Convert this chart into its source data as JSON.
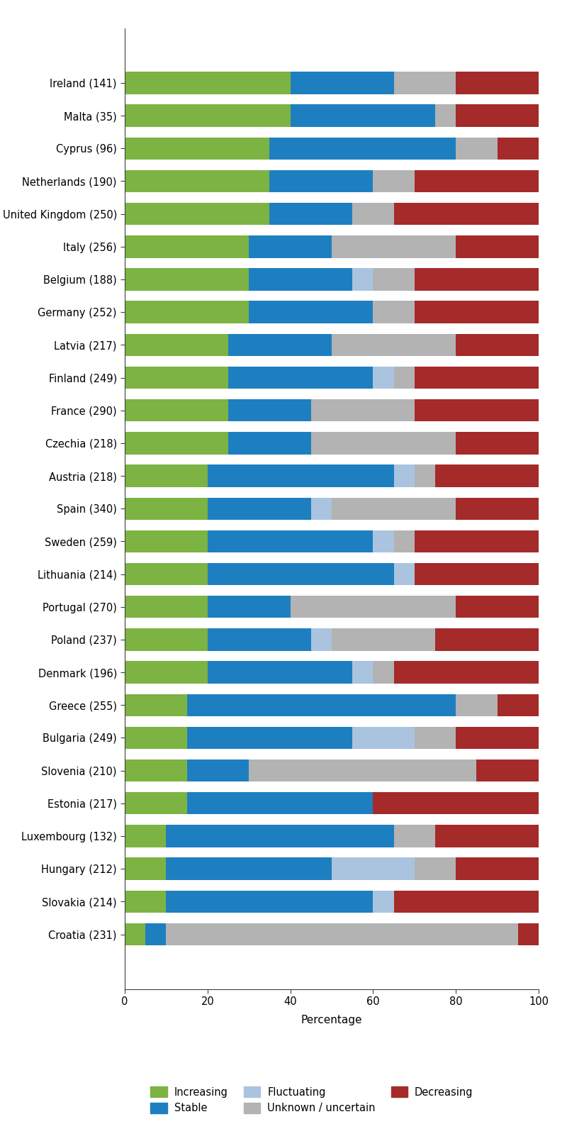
{
  "countries": [
    "Ireland (141)",
    "Malta (35)",
    "Cyprus (96)",
    "Netherlands (190)",
    "United Kingdom (250)",
    "Italy (256)",
    "Belgium (188)",
    "Germany (252)",
    "Latvia (217)",
    "Finland (249)",
    "France (290)",
    "Czechia (218)",
    "Austria (218)",
    "Spain (340)",
    "Sweden (259)",
    "Lithuania (214)",
    "Portugal (270)",
    "Poland (237)",
    "Denmark (196)",
    "Greece (255)",
    "Bulgaria (249)",
    "Slovenia (210)",
    "Estonia (217)",
    "Luxembourg (132)",
    "Hungary (212)",
    "Slovakia (214)",
    "Croatia (231)"
  ],
  "increasing": [
    40,
    40,
    35,
    35,
    35,
    30,
    30,
    30,
    25,
    25,
    25,
    25,
    20,
    20,
    20,
    20,
    20,
    20,
    20,
    15,
    15,
    15,
    15,
    10,
    10,
    10,
    5
  ],
  "stable": [
    25,
    35,
    45,
    25,
    20,
    20,
    25,
    30,
    25,
    35,
    20,
    20,
    45,
    25,
    40,
    45,
    20,
    25,
    35,
    65,
    40,
    15,
    45,
    55,
    40,
    50,
    5
  ],
  "fluctuating": [
    0,
    0,
    0,
    0,
    0,
    0,
    5,
    0,
    0,
    5,
    0,
    0,
    5,
    5,
    5,
    5,
    0,
    5,
    5,
    0,
    15,
    0,
    0,
    0,
    20,
    5,
    0
  ],
  "unknown": [
    15,
    5,
    10,
    10,
    10,
    30,
    10,
    10,
    30,
    5,
    25,
    35,
    5,
    30,
    5,
    0,
    40,
    25,
    5,
    10,
    10,
    55,
    0,
    10,
    10,
    0,
    85
  ],
  "decreasing": [
    20,
    20,
    10,
    30,
    35,
    20,
    30,
    30,
    20,
    30,
    30,
    20,
    25,
    20,
    30,
    30,
    20,
    25,
    35,
    10,
    20,
    15,
    40,
    25,
    20,
    35,
    5
  ],
  "stack_order": [
    "increasing",
    "stable",
    "fluctuating",
    "unknown",
    "decreasing"
  ],
  "colors": {
    "increasing": "#7cb342",
    "stable": "#1e7fc0",
    "fluctuating": "#aac4e0",
    "unknown": "#b3b3b3",
    "decreasing": "#a52a2a"
  },
  "legend_labels": {
    "increasing": "Increasing",
    "stable": "Stable",
    "fluctuating": "Fluctuating",
    "unknown": "Unknown / uncertain",
    "decreasing": "Decreasing"
  },
  "xlabel": "Percentage",
  "xlim": [
    0,
    100
  ],
  "xticks": [
    0,
    20,
    40,
    60,
    80,
    100
  ],
  "bar_height": 0.68,
  "figsize": [
    8.0,
    15.85
  ],
  "dpi": 100,
  "background_color": "#ffffff"
}
